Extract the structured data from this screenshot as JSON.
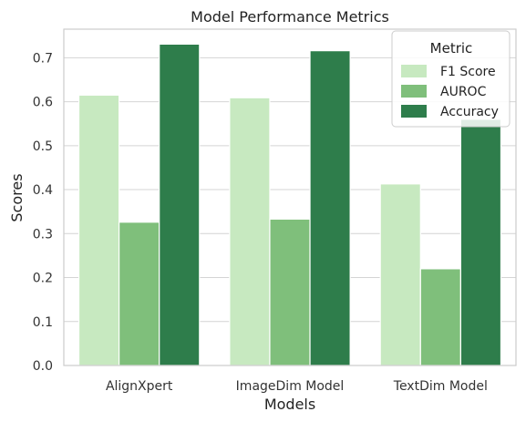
{
  "chart_data": {
    "type": "bar",
    "title": "Model Performance Metrics",
    "xlabel": "Models",
    "ylabel": "Scores",
    "ylim": [
      0,
      0.765
    ],
    "yticks": [
      0.0,
      0.1,
      0.2,
      0.3,
      0.4,
      0.5,
      0.6,
      0.7
    ],
    "ytick_labels": [
      "0.0",
      "0.1",
      "0.2",
      "0.3",
      "0.4",
      "0.5",
      "0.6",
      "0.7"
    ],
    "grid": "horizontal",
    "legend": {
      "title": "Metric",
      "placement": "top-right"
    },
    "categories": [
      "AlignXpert",
      "ImageDim Model",
      "TextDim Model"
    ],
    "series": [
      {
        "name": "F1 Score",
        "color": "#c7e9c0",
        "values": [
          0.615,
          0.609,
          0.413
        ]
      },
      {
        "name": "AUROC",
        "color": "#7fbf7b",
        "values": [
          0.326,
          0.333,
          0.22
        ]
      },
      {
        "name": "Accuracy",
        "color": "#2e7d4b",
        "values": [
          0.731,
          0.716,
          0.56
        ]
      }
    ]
  }
}
